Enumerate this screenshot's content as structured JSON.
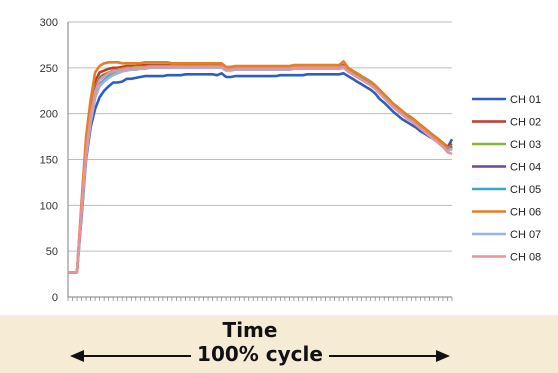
{
  "chart_data": {
    "type": "line",
    "xlabel": "Time",
    "x_span_label": "100% cycle",
    "ylim": [
      0,
      300
    ],
    "yticks": [
      0,
      50,
      100,
      150,
      200,
      250,
      300
    ],
    "n_points": 86,
    "grid": true,
    "legend_position": "right",
    "x_tick_labels": "none",
    "series": [
      {
        "name": "CH 01",
        "color": "#2f5fbd",
        "values": [
          27,
          27,
          27,
          88,
          150,
          185,
          205,
          218,
          225,
          230,
          234,
          234,
          235,
          238,
          238,
          239,
          240,
          241,
          241,
          241,
          241,
          241,
          242,
          242,
          242,
          242,
          243,
          243,
          243,
          243,
          243,
          243,
          243,
          242,
          244,
          240,
          240,
          241,
          241,
          241,
          241,
          241,
          241,
          241,
          241,
          241,
          241,
          242,
          242,
          242,
          242,
          242,
          242,
          243,
          243,
          243,
          243,
          243,
          243,
          243,
          243,
          244,
          241,
          238,
          235,
          232,
          229,
          226,
          222,
          216,
          212,
          207,
          202,
          198,
          194,
          191,
          188,
          185,
          181,
          178,
          175,
          172,
          169,
          166,
          163,
          172
        ]
      },
      {
        "name": "CH 02",
        "color": "#c0392b",
        "values": [
          27,
          27,
          27,
          100,
          165,
          205,
          235,
          245,
          247,
          249,
          250,
          250,
          251,
          252,
          252,
          252,
          253,
          253,
          253,
          253,
          253,
          253,
          253,
          253,
          253,
          253,
          253,
          253,
          253,
          253,
          253,
          253,
          253,
          253,
          253,
          249,
          249,
          250,
          250,
          250,
          250,
          250,
          250,
          250,
          250,
          250,
          250,
          250,
          250,
          251,
          251,
          251,
          251,
          251,
          251,
          251,
          251,
          251,
          251,
          251,
          251,
          253,
          249,
          246,
          243,
          240,
          237,
          233,
          229,
          224,
          219,
          214,
          209,
          205,
          201,
          197,
          194,
          190,
          186,
          183,
          179,
          176,
          172,
          168,
          164,
          167
        ]
      },
      {
        "name": "CH 03",
        "color": "#86b83c",
        "values": [
          27,
          27,
          27,
          98,
          160,
          200,
          228,
          240,
          243,
          245,
          247,
          248,
          249,
          250,
          250,
          251,
          251,
          251,
          252,
          252,
          252,
          252,
          252,
          252,
          252,
          252,
          252,
          252,
          252,
          252,
          252,
          252,
          252,
          252,
          252,
          249,
          249,
          250,
          250,
          250,
          250,
          250,
          250,
          250,
          250,
          250,
          250,
          250,
          250,
          250,
          251,
          251,
          251,
          251,
          251,
          251,
          251,
          251,
          251,
          251,
          251,
          252,
          248,
          245,
          242,
          239,
          236,
          233,
          229,
          224,
          219,
          214,
          209,
          205,
          201,
          197,
          194,
          190,
          186,
          182,
          178,
          174,
          170,
          166,
          162,
          165
        ]
      },
      {
        "name": "CH 04",
        "color": "#6a4a9c",
        "values": [
          27,
          27,
          27,
          97,
          158,
          198,
          226,
          238,
          242,
          244,
          246,
          247,
          248,
          249,
          249,
          250,
          250,
          250,
          251,
          251,
          251,
          251,
          251,
          251,
          251,
          251,
          251,
          251,
          251,
          251,
          251,
          251,
          251,
          251,
          251,
          248,
          248,
          249,
          249,
          249,
          249,
          249,
          249,
          249,
          249,
          249,
          249,
          249,
          249,
          249,
          250,
          250,
          250,
          250,
          250,
          250,
          250,
          250,
          250,
          250,
          250,
          251,
          247,
          244,
          241,
          238,
          235,
          232,
          228,
          223,
          218,
          213,
          208,
          204,
          200,
          196,
          193,
          189,
          185,
          181,
          177,
          173,
          169,
          165,
          161,
          164
        ]
      },
      {
        "name": "CH 05",
        "color": "#3ba6c4",
        "values": [
          27,
          27,
          27,
          95,
          155,
          193,
          220,
          232,
          237,
          241,
          244,
          246,
          247,
          248,
          249,
          249,
          250,
          250,
          250,
          251,
          251,
          251,
          251,
          251,
          251,
          251,
          251,
          251,
          251,
          251,
          251,
          251,
          251,
          251,
          251,
          248,
          248,
          249,
          249,
          249,
          249,
          249,
          249,
          249,
          249,
          249,
          249,
          249,
          249,
          249,
          250,
          250,
          250,
          250,
          250,
          250,
          250,
          250,
          250,
          250,
          250,
          251,
          247,
          244,
          241,
          238,
          235,
          232,
          228,
          223,
          218,
          213,
          208,
          204,
          200,
          196,
          193,
          189,
          185,
          181,
          177,
          173,
          169,
          165,
          160,
          163
        ]
      },
      {
        "name": "CH 06",
        "color": "#e67e22",
        "values": [
          27,
          27,
          27,
          105,
          175,
          215,
          245,
          252,
          255,
          256,
          256,
          256,
          255,
          255,
          255,
          255,
          255,
          256,
          256,
          256,
          256,
          256,
          256,
          255,
          255,
          255,
          255,
          255,
          255,
          255,
          255,
          255,
          255,
          255,
          255,
          251,
          251,
          252,
          252,
          252,
          252,
          252,
          252,
          252,
          252,
          252,
          252,
          252,
          252,
          252,
          253,
          253,
          253,
          253,
          253,
          253,
          253,
          253,
          253,
          253,
          253,
          257,
          250,
          247,
          244,
          241,
          238,
          235,
          231,
          226,
          221,
          216,
          211,
          207,
          203,
          199,
          196,
          192,
          188,
          184,
          180,
          176,
          172,
          168,
          163,
          160
        ]
      },
      {
        "name": "CH 07",
        "color": "#9bb5dd",
        "values": [
          27,
          27,
          27,
          93,
          153,
          190,
          217,
          230,
          235,
          239,
          242,
          244,
          246,
          247,
          248,
          248,
          249,
          249,
          250,
          250,
          250,
          250,
          250,
          250,
          250,
          250,
          250,
          250,
          250,
          250,
          250,
          250,
          250,
          250,
          250,
          247,
          247,
          248,
          248,
          248,
          248,
          248,
          248,
          248,
          248,
          248,
          248,
          248,
          248,
          248,
          249,
          249,
          249,
          249,
          249,
          249,
          249,
          249,
          249,
          249,
          249,
          250,
          246,
          243,
          240,
          237,
          234,
          231,
          227,
          222,
          217,
          212,
          207,
          203,
          199,
          195,
          192,
          188,
          184,
          180,
          176,
          172,
          168,
          164,
          159,
          162
        ]
      },
      {
        "name": "CH 08",
        "color": "#e8939a",
        "values": [
          27,
          27,
          27,
          96,
          157,
          196,
          224,
          237,
          241,
          244,
          246,
          247,
          248,
          249,
          249,
          250,
          250,
          250,
          251,
          251,
          251,
          251,
          251,
          251,
          251,
          251,
          251,
          251,
          251,
          251,
          251,
          251,
          251,
          251,
          251,
          248,
          248,
          249,
          249,
          249,
          249,
          249,
          249,
          249,
          249,
          249,
          249,
          249,
          249,
          249,
          250,
          250,
          250,
          250,
          250,
          250,
          250,
          250,
          250,
          250,
          250,
          251,
          246,
          243,
          240,
          237,
          234,
          231,
          227,
          222,
          217,
          212,
          207,
          203,
          199,
          195,
          192,
          188,
          184,
          180,
          176,
          172,
          168,
          164,
          158,
          156
        ]
      }
    ]
  }
}
